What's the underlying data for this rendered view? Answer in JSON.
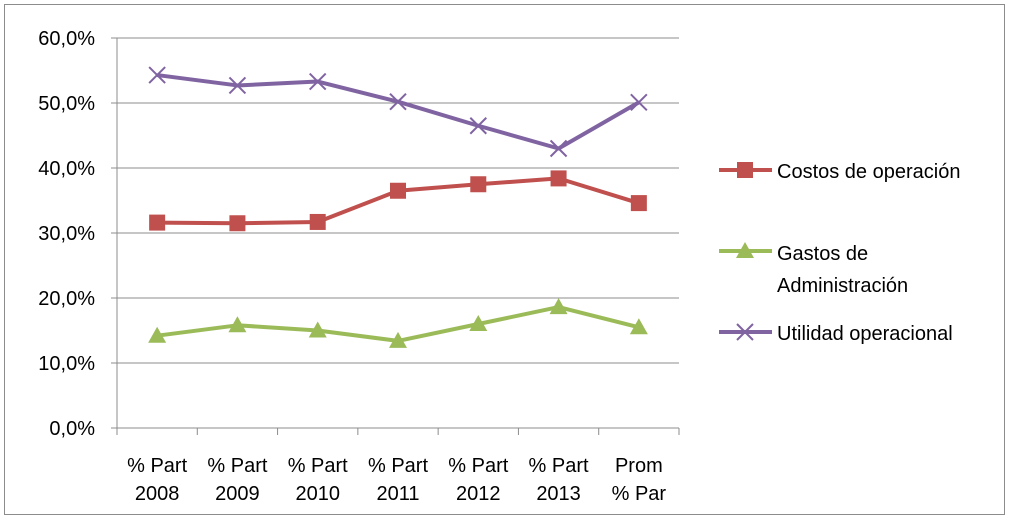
{
  "chart_data": {
    "type": "line",
    "title": "",
    "xlabel": "",
    "ylabel": "",
    "categories": [
      [
        "% Part",
        "2008"
      ],
      [
        "% Part",
        "2009"
      ],
      [
        "% Part",
        "2010"
      ],
      [
        "% Part",
        "2011"
      ],
      [
        "% Part",
        "2012"
      ],
      [
        "% Part",
        "2013"
      ],
      [
        "Prom",
        "% Par"
      ]
    ],
    "ylim": [
      0,
      60
    ],
    "yticks": [
      0,
      10,
      20,
      30,
      40,
      50,
      60
    ],
    "ytick_labels": [
      "0,0%",
      "10,0%",
      "20,0%",
      "30,0%",
      "40,0%",
      "50,0%",
      "60,0%"
    ],
    "grid": true,
    "legend_position": "right",
    "series": [
      {
        "name": "Costos de operación",
        "legend_lines": [
          "Costos de operación"
        ],
        "color": "#c0504d",
        "marker": "square",
        "values": [
          31.6,
          31.5,
          31.7,
          36.5,
          37.5,
          38.4,
          34.6
        ]
      },
      {
        "name": "Gastos de Administración",
        "legend_lines": [
          "Gastos de",
          "Administración"
        ],
        "color": "#9bbb59",
        "marker": "triangle",
        "values": [
          14.2,
          15.8,
          15.0,
          13.4,
          16.0,
          18.6,
          15.5
        ]
      },
      {
        "name": "Utilidad operacional",
        "legend_lines": [
          "Utilidad operacional"
        ],
        "color": "#8064a2",
        "marker": "x",
        "values": [
          54.3,
          52.7,
          53.3,
          50.2,
          46.5,
          43.0,
          50.1
        ]
      }
    ]
  }
}
